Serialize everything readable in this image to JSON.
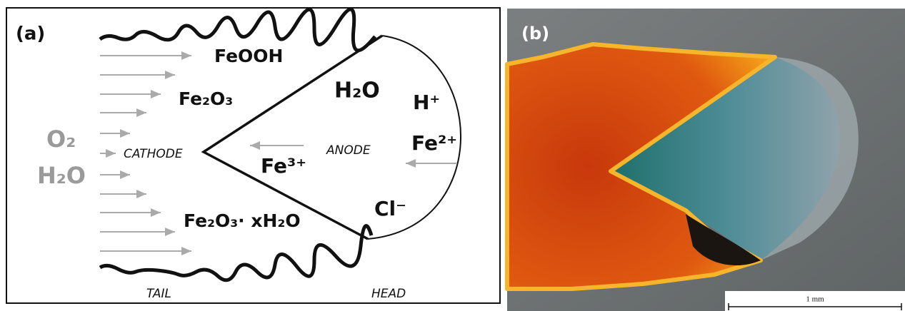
{
  "panel_a": {
    "label": "(a)",
    "labels": [
      "FeOOH",
      "Fe₂O₃",
      "H₂O",
      "H⁺",
      "Fe²⁺",
      "O₂",
      "CATHODE",
      "ANODE",
      "Fe³⁺",
      "H₂O",
      "Cl⁻",
      "Fe₂O₃· xH₂O",
      "TAIL",
      "HEAD"
    ]
  },
  "panel_b": {
    "label": "(b)",
    "scale_bar": "1 mm"
  }
}
